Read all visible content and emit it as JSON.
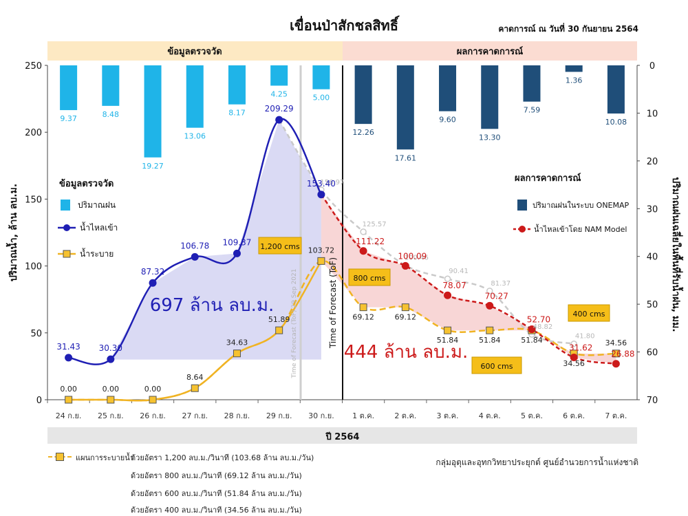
{
  "header": {
    "title": "เขื่อนป่าสักชลสิทธิ์",
    "forecast_date": "คาดการณ์ ณ วันที่ 30 กันยายน 2564"
  },
  "sections": {
    "observed": "ข้อมูลตรวจวัด",
    "forecast": "ผลการคาดการณ์"
  },
  "year_label": "ปี 2564",
  "footer": {
    "agency": "กลุ่มอุตุและอุทกวิทยาประยุกต์ ศูนย์อำนวยการน้ำแห่งชาติ",
    "legend_title": "แผนการระบายน้ำ",
    "plan_lines": [
      "ด้วยอัตรา 1,200 ลบ.ม./วินาที (103.68 ล้าน ลบ.ม./วัน)",
      "ด้วยอัตรา 800 ลบ.ม./วินาที (69.12 ล้าน ลบ.ม./วัน)",
      "ด้วยอัตรา 600 ลบ.ม./วินาที (51.84 ล้าน ลบ.ม./วัน)",
      "ด้วยอัตรา 400 ลบ.ม./วินาที (34.56 ล้าน ลบ.ม./วัน)"
    ]
  },
  "colors": {
    "observed_rain": "#1fb4e8",
    "forecast_rain": "#1f4e79",
    "inflow": "#1f1fb4",
    "release": "#f0b323",
    "nam": "#cc1a1a",
    "gray_forecast": "#c9c9c9",
    "observed_fill": "#d3d3f2",
    "forecast_fill": "#f7cfcf",
    "header_observed": "#fde9c3",
    "header_forecast": "#fbdcd2"
  },
  "chart_data": {
    "type": "line",
    "categories": [
      "24 ก.ย.",
      "25 ก.ย.",
      "26 ก.ย.",
      "27 ก.ย.",
      "28 ก.ย.",
      "29 ก.ย.",
      "30 ก.ย.",
      "1 ต.ค.",
      "2 ต.ค.",
      "3 ต.ค.",
      "4 ต.ค.",
      "5 ต.ค.",
      "6 ต.ค.",
      "7 ต.ค."
    ],
    "ylabel": "ปริมาณน้ำ, ล้าน ลบ.ม.",
    "y2label": "ปริมาณฝนเฉลี่ยในพื้นที่รับน้ำฝน, มม.",
    "ylim": [
      0,
      250
    ],
    "y2lim": [
      70,
      0
    ],
    "y_ticks": [
      0,
      50,
      100,
      150,
      200,
      250
    ],
    "y2_ticks": [
      0,
      10,
      20,
      30,
      40,
      50,
      60,
      70
    ],
    "tof_label": "Time of Forecast (ToF)",
    "tof_label_gray": "Time of Forecast (ToF) 29 Sep 2021",
    "series": [
      {
        "name": "ปริมาณฝน",
        "kind": "bar",
        "axis": "right",
        "values": [
          9.37,
          8.48,
          19.27,
          13.06,
          8.17,
          4.25,
          5.0,
          null,
          null,
          null,
          null,
          null,
          null,
          null
        ]
      },
      {
        "name": "ปริมาณฝนในระบบ ONEMAP",
        "kind": "bar",
        "axis": "right",
        "values": [
          null,
          null,
          null,
          null,
          null,
          null,
          null,
          12.26,
          17.61,
          9.6,
          13.3,
          7.59,
          1.36,
          10.08
        ]
      },
      {
        "name": "น้ำไหลเข้า",
        "kind": "line",
        "values": [
          31.43,
          30.3,
          87.32,
          106.78,
          109.37,
          209.29,
          153.4,
          null,
          null,
          null,
          null,
          null,
          null,
          null
        ]
      },
      {
        "name": "น้ำระบาย",
        "kind": "line",
        "values": [
          0.0,
          0.0,
          0.0,
          8.64,
          34.63,
          51.89,
          103.72,
          69.12,
          69.12,
          51.84,
          51.84,
          51.84,
          34.56,
          34.56
        ]
      },
      {
        "name": "น้ำไหลเข้าโดย NAM Model",
        "kind": "line",
        "values": [
          null,
          null,
          null,
          null,
          null,
          null,
          153.4,
          111.22,
          100.09,
          78.07,
          70.27,
          52.7,
          31.62,
          26.88
        ]
      },
      {
        "kind": "line",
        "values": [
          null,
          null,
          null,
          null,
          null,
          209.29,
          156.97,
          125.57,
          100.46,
          90.41,
          81.37,
          48.82,
          41.8,
          null
        ]
      }
    ],
    "annotations": {
      "observed_volume": "697 ล้าน ลบ.ม.",
      "forecast_volume": "444 ล้าน ลบ.ม.",
      "callouts": [
        "1,200 cms",
        "800 cms",
        "600 cms",
        "400 cms"
      ]
    },
    "legend": {
      "observed_title": "ข้อมูลตรวจวัด",
      "observed_items": [
        "ปริมาณฝน",
        "น้ำไหลเข้า",
        "น้ำระบาย"
      ],
      "forecast_title": "ผลการคาดการณ์",
      "forecast_items": [
        "ปริมาณฝนในระบบ ONEMAP",
        "น้ำไหลเข้าโดย NAM Model"
      ]
    }
  }
}
